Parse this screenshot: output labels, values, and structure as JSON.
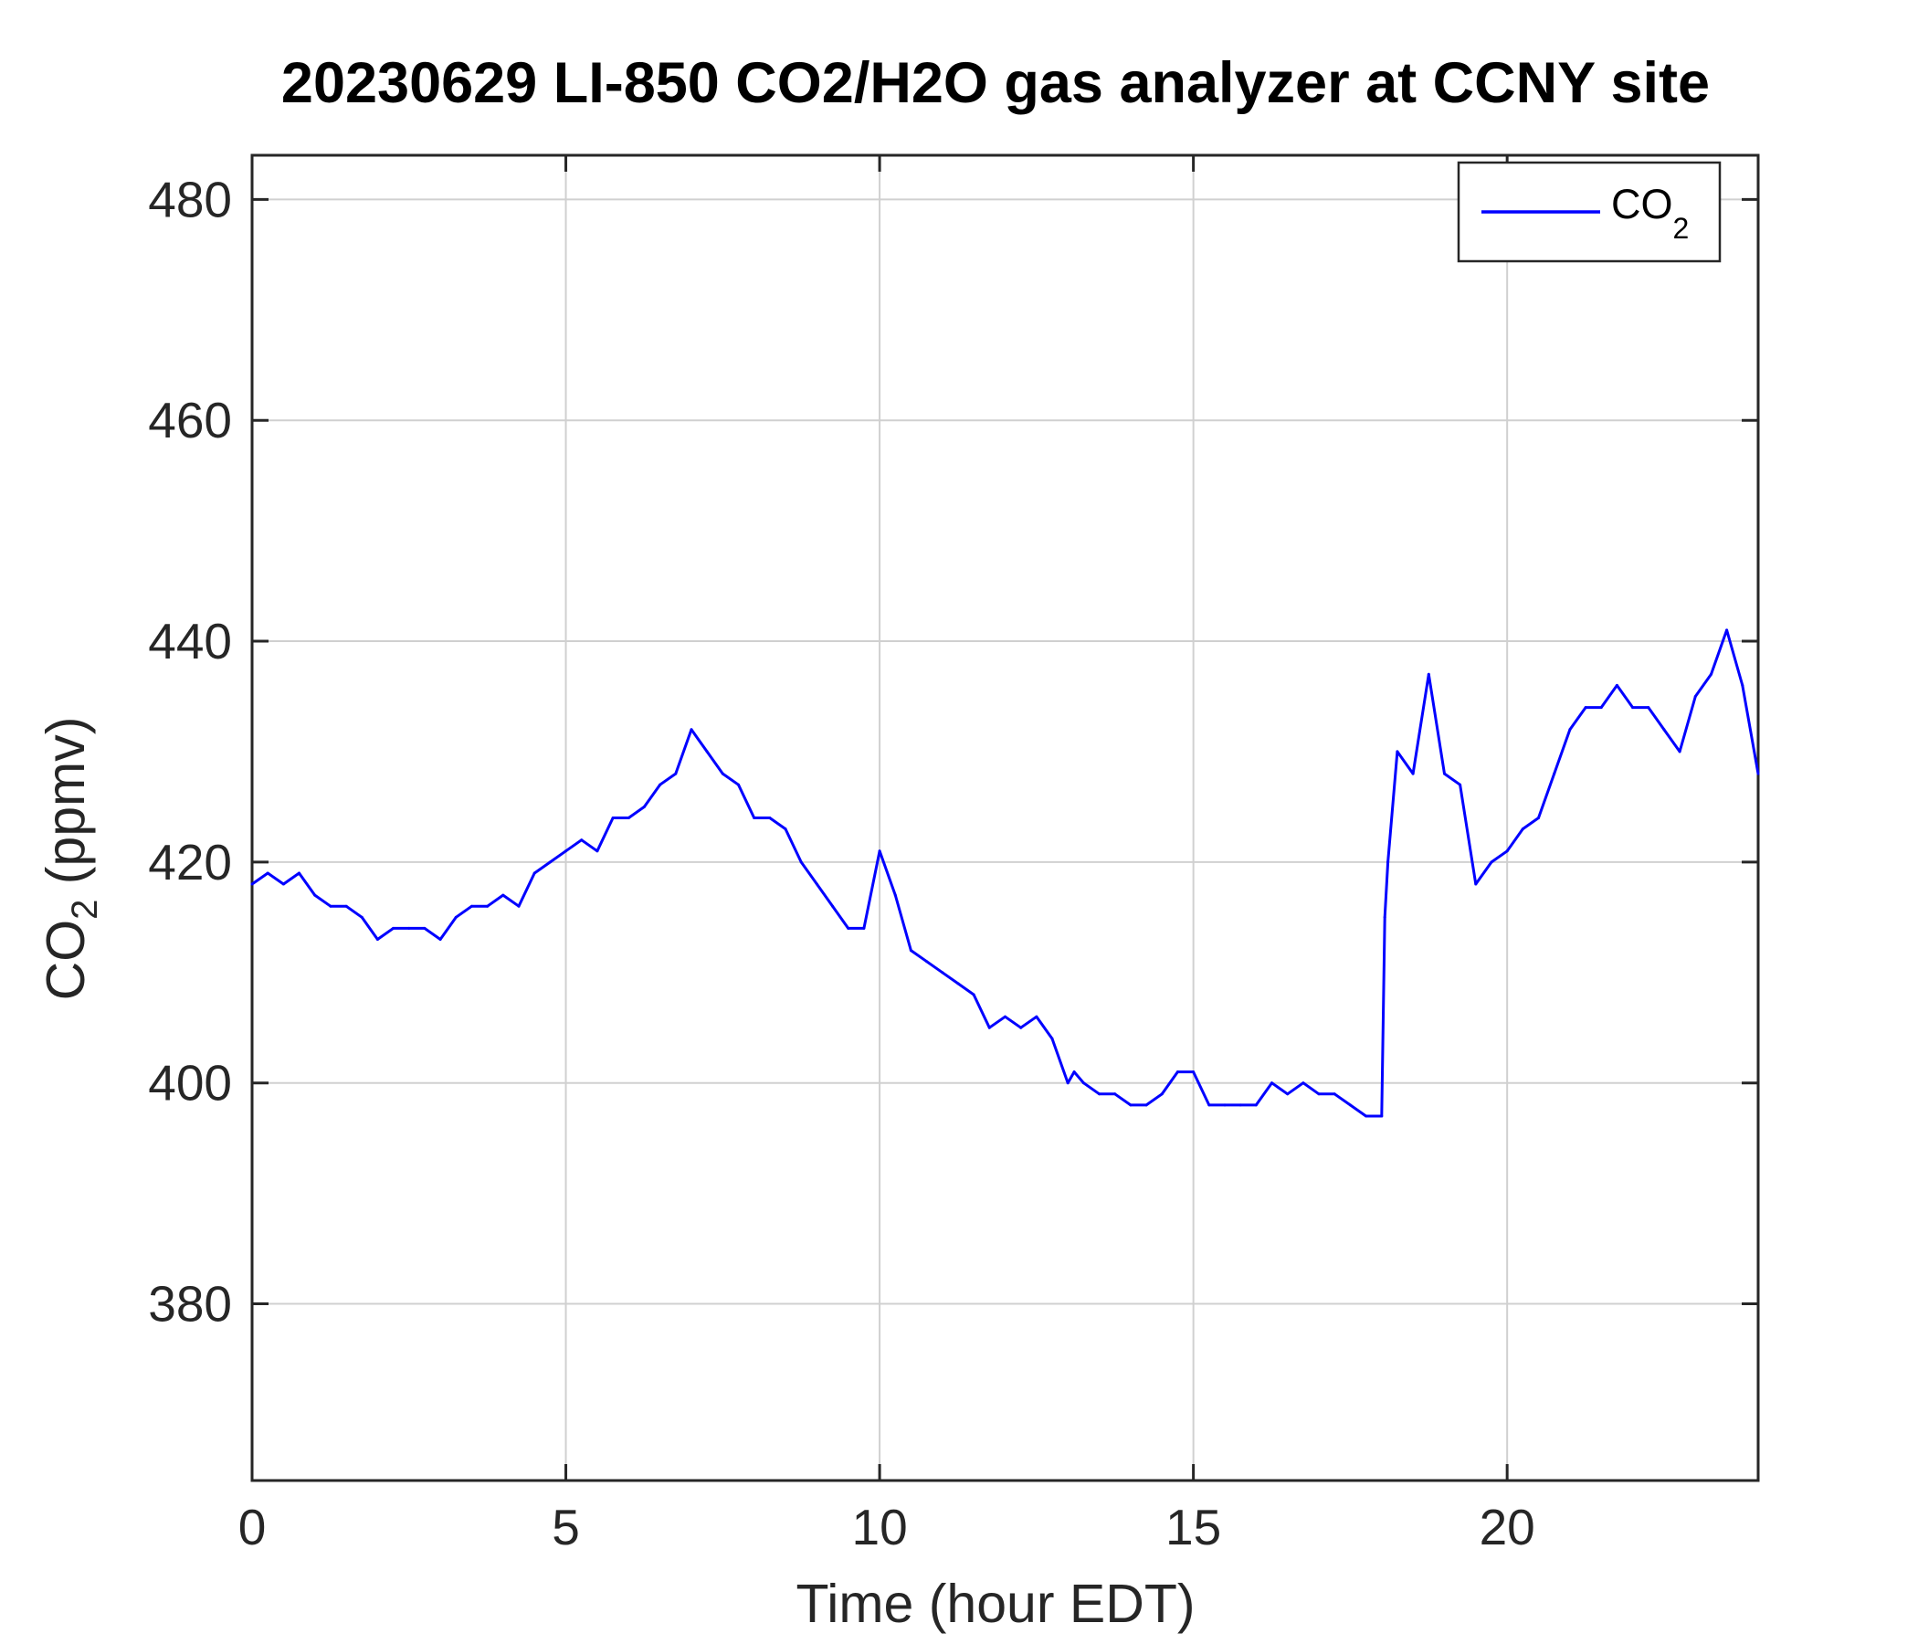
{
  "chart_data": {
    "type": "line",
    "title": "20230629 LI-850 CO2/H2O gas analyzer at CCNY site",
    "xlabel": "Time (hour EDT)",
    "ylabel": {
      "main": "CO",
      "sub": "2",
      "rest": " (ppmv)"
    },
    "xlim": [
      0,
      24
    ],
    "ylim": [
      364,
      484
    ],
    "xticks": [
      0,
      5,
      10,
      15,
      20
    ],
    "yticks": [
      380,
      400,
      420,
      440,
      460,
      480
    ],
    "grid": true,
    "legend_position": "top-right",
    "series": [
      {
        "name": {
          "main": "CO",
          "sub": "2"
        },
        "color": "#0000ff",
        "x": [
          0,
          0.25,
          0.5,
          0.75,
          1,
          1.25,
          1.5,
          1.75,
          2,
          2.25,
          2.5,
          2.75,
          3,
          3.25,
          3.5,
          3.75,
          4,
          4.25,
          4.5,
          4.75,
          5,
          5.25,
          5.5,
          5.75,
          6,
          6.25,
          6.5,
          6.75,
          7,
          7.25,
          7.5,
          7.75,
          8,
          8.25,
          8.5,
          8.75,
          9,
          9.25,
          9.5,
          9.75,
          10,
          10.25,
          10.5,
          10.75,
          11,
          11.25,
          11.5,
          11.75,
          12,
          12.25,
          12.5,
          12.75,
          13,
          13.1,
          13.25,
          13.5,
          13.75,
          14,
          14.25,
          14.5,
          14.75,
          15,
          15.25,
          15.5,
          15.75,
          16,
          16.25,
          16.5,
          16.75,
          17,
          17.25,
          17.5,
          17.75,
          18,
          18.05,
          18.1,
          18.25,
          18.5,
          18.75,
          19,
          19.25,
          19.5,
          19.75,
          20,
          20.25,
          20.5,
          20.75,
          21,
          21.25,
          21.5,
          21.75,
          22,
          22.25,
          22.5,
          22.75,
          23,
          23.25,
          23.5,
          23.75,
          24
        ],
        "y": [
          418,
          419,
          418,
          419,
          417,
          416,
          416,
          415,
          413,
          414,
          414,
          414,
          413,
          415,
          416,
          416,
          417,
          416,
          419,
          420,
          421,
          422,
          421,
          424,
          424,
          425,
          427,
          428,
          432,
          430,
          428,
          427,
          424,
          424,
          423,
          420,
          418,
          416,
          414,
          414,
          421,
          417,
          412,
          411,
          410,
          409,
          408,
          405,
          406,
          405,
          406,
          404,
          400,
          401,
          400,
          399,
          399,
          398,
          398,
          399,
          401,
          401,
          398,
          398,
          398,
          398,
          400,
          399,
          400,
          399,
          399,
          398,
          397,
          397,
          415,
          420,
          430,
          428,
          437,
          428,
          427,
          418,
          420,
          421,
          423,
          424,
          428,
          432,
          434,
          434,
          436,
          434,
          434,
          432,
          430,
          435,
          437,
          441,
          436,
          428
        ]
      }
    ]
  }
}
